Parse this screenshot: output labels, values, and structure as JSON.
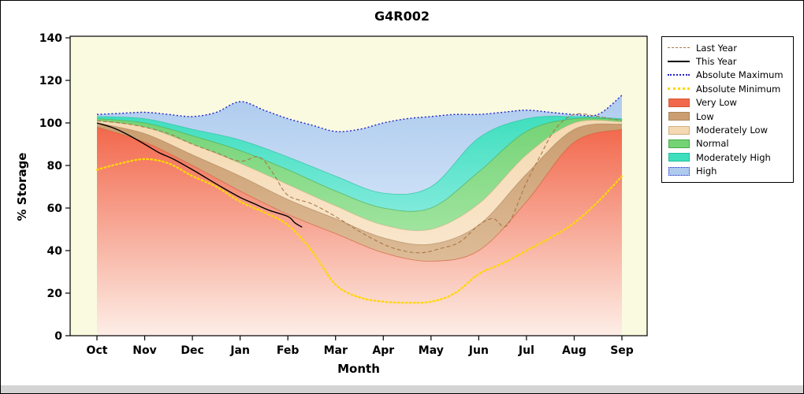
{
  "title": "G4R002",
  "axes": {
    "x_label": "Month",
    "y_label": "% Storage",
    "x_ticks": [
      "Oct",
      "Nov",
      "Dec",
      "Jan",
      "Feb",
      "Mar",
      "Apr",
      "May",
      "Jun",
      "Jul",
      "Aug",
      "Sep"
    ],
    "y_ticks": [
      0,
      20,
      40,
      60,
      80,
      100,
      120,
      140
    ]
  },
  "legend": {
    "items": [
      {
        "label": "Last Year",
        "type": "line",
        "color": "#a87848",
        "style": "dashed",
        "width": 1
      },
      {
        "label": "This Year",
        "type": "line",
        "color": "#000000",
        "style": "solid",
        "width": 2
      },
      {
        "label": "Absolute Maximum",
        "type": "line",
        "color": "#2323cc",
        "style": "dotted",
        "width": 2
      },
      {
        "label": "Absolute Minimum",
        "type": "line",
        "color": "#ffd60a",
        "style": "dotted",
        "width": 3
      },
      {
        "label": "Very Low",
        "type": "band",
        "color": "#f2684c",
        "border": "#d25a36"
      },
      {
        "label": "Low",
        "type": "band",
        "color": "#cb9d70",
        "border": "#a9855b"
      },
      {
        "label": "Moderately Low",
        "type": "band",
        "color": "#f5d9b2",
        "border": "#cfb183"
      },
      {
        "label": "Normal",
        "type": "band",
        "color": "#74d374",
        "border": "#4aa84a"
      },
      {
        "label": "Moderately High",
        "type": "band",
        "color": "#3fdfbe",
        "border": "#23bd9c"
      },
      {
        "label": "High",
        "type": "band",
        "color": "#aecbee",
        "border": "#2323cc",
        "border_style": "dotted"
      }
    ]
  },
  "chart_data": {
    "type": "area",
    "title": "G4R002",
    "xlabel": "Month",
    "ylabel": "% Storage",
    "ylim": [
      0,
      140
    ],
    "legend_position": "right",
    "grid": false,
    "plot_background": "#f9fae0",
    "categories": [
      "Oct",
      "Nov",
      "Dec",
      "Jan",
      "Feb",
      "Mar",
      "Apr",
      "May",
      "Jun",
      "Jul",
      "Aug",
      "Sep"
    ],
    "boundaries": {
      "very_low_top": {
        "x": [
          0,
          1,
          2,
          3,
          4,
          5,
          6,
          7,
          8,
          9,
          10,
          11
        ],
        "v": [
          98,
          91,
          80,
          68,
          57,
          48,
          39,
          35,
          40,
          63,
          91,
          97
        ]
      },
      "low_top": {
        "x": [
          0,
          1,
          2,
          3,
          4,
          5,
          6,
          7,
          8,
          9,
          10,
          11
        ],
        "v": [
          100,
          95,
          85,
          75,
          64,
          55,
          46,
          43,
          52,
          76,
          97,
          99.5
        ]
      },
      "moderately_low_top": {
        "x": [
          0,
          1,
          2,
          3,
          4,
          5,
          6,
          7,
          8,
          9,
          10,
          11
        ],
        "v": [
          101,
          98,
          90,
          81,
          71,
          61,
          52,
          50,
          62,
          85,
          100,
          100.5
        ]
      },
      "normal_top": {
        "x": [
          0,
          1,
          2,
          3,
          4,
          5,
          6,
          7,
          8,
          9,
          10,
          11
        ],
        "v": [
          102,
          100,
          94,
          87,
          78,
          68,
          60,
          60,
          77,
          96,
          102,
          101.5
        ]
      },
      "moderately_high_top": {
        "x": [
          0,
          1,
          2,
          3,
          4,
          5,
          6,
          7,
          8,
          9,
          10,
          11
        ],
        "v": [
          103,
          102,
          97,
          92,
          84,
          75,
          67,
          70,
          93,
          102,
          103,
          102
        ]
      },
      "high_top": {
        "x": [
          0,
          0.5,
          1,
          1.5,
          2,
          2.5,
          3,
          3.5,
          4,
          4.5,
          5,
          5.5,
          6,
          6.5,
          7,
          7.5,
          8,
          8.5,
          9,
          9.5,
          10,
          10.5,
          11
        ],
        "v": [
          104,
          104.5,
          105,
          104,
          103,
          105,
          110,
          106,
          102,
          99,
          96,
          97,
          100,
          102,
          103,
          104,
          104,
          105,
          106,
          105,
          104,
          104,
          113
        ]
      }
    },
    "bands": [
      {
        "name": "Very Low",
        "upper": "very_low_top",
        "fill": [
          "#f2684c",
          "#fdeee7"
        ],
        "stroke": "#d25a36"
      },
      {
        "name": "Low",
        "upper": "low_top",
        "fill": [
          "#cb9d70",
          "#ddbc97"
        ],
        "stroke": "#a9855b"
      },
      {
        "name": "Moderately Low",
        "upper": "moderately_low_top",
        "fill": [
          "#f5d9b2",
          "#f9e6cb"
        ],
        "stroke": "#cfb183"
      },
      {
        "name": "Normal",
        "upper": "normal_top",
        "fill": [
          "#74d374",
          "#9fe49f"
        ],
        "stroke": "#4aa84a"
      },
      {
        "name": "Moderately High",
        "upper": "moderately_high_top",
        "fill": [
          "#3fdfbe",
          "#7feadb"
        ],
        "stroke": "#23bd9c"
      },
      {
        "name": "High",
        "upper": "high_top",
        "fill": [
          "#aecbee",
          "#cbdff6"
        ]
      }
    ],
    "lines": [
      {
        "name": "Absolute Maximum",
        "color": "#2323cc",
        "style": "dotted",
        "width": 1.4,
        "x": [
          0,
          0.5,
          1,
          1.5,
          2,
          2.5,
          3,
          3.5,
          4,
          4.5,
          5,
          5.5,
          6,
          6.5,
          7,
          7.5,
          8,
          8.5,
          9,
          9.5,
          10,
          10.5,
          11
        ],
        "v": [
          104,
          104.5,
          105,
          104,
          103,
          105,
          110,
          106,
          102,
          99,
          96,
          97,
          100,
          102,
          103,
          104,
          104,
          105,
          106,
          105,
          104,
          104,
          113
        ]
      },
      {
        "name": "Absolute Minimum",
        "color": "#ffd60a",
        "style": "dotted",
        "width": 2.4,
        "x": [
          0,
          0.5,
          1,
          1.5,
          2,
          2.5,
          3,
          3.5,
          4,
          4.5,
          5,
          5.5,
          6,
          6.5,
          7,
          7.5,
          8,
          8.5,
          9,
          9.5,
          10,
          10.5,
          11
        ],
        "v": [
          78,
          81,
          83,
          81,
          75,
          70,
          63,
          58,
          52,
          40,
          24,
          18,
          16,
          15.5,
          16,
          20,
          29,
          34,
          40,
          46,
          53,
          63,
          75
        ]
      },
      {
        "name": "Last Year",
        "color": "#a87848",
        "style": "dashed",
        "width": 1.1,
        "x": [
          0,
          0.5,
          1,
          1.5,
          2,
          2.5,
          3,
          3.4,
          3.7,
          4,
          4.5,
          5,
          5.5,
          6,
          6.4,
          6.8,
          7.2,
          7.6,
          8,
          8.3,
          8.6,
          9,
          9.3,
          9.6,
          10,
          10.5,
          11
        ],
        "v": [
          101,
          100,
          98,
          95,
          90,
          86,
          82,
          84,
          76,
          66,
          62,
          56,
          49,
          43,
          40,
          39,
          41,
          44,
          52,
          55,
          52,
          72,
          85,
          97,
          104,
          103,
          101
        ]
      },
      {
        "name": "This Year",
        "color": "#000000",
        "style": "solid",
        "width": 1.4,
        "x": [
          0,
          0.3,
          0.6,
          1,
          1.3,
          1.6,
          2,
          2.3,
          2.6,
          3,
          3.3,
          3.6,
          4,
          4.15,
          4.3
        ],
        "v": [
          100,
          98,
          95,
          90,
          86,
          83,
          78,
          74,
          70,
          65,
          62,
          59,
          56,
          53,
          51
        ]
      }
    ]
  }
}
